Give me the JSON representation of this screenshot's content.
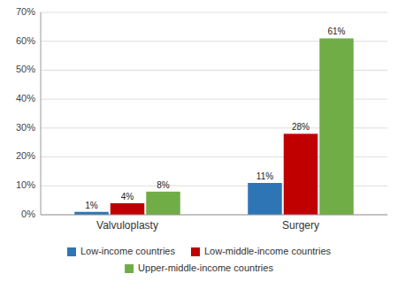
{
  "chart_data": {
    "type": "bar",
    "categories": [
      "Valvuloplasty",
      "Surgery"
    ],
    "series": [
      {
        "name": "Low-income countries",
        "color": "#2E75B6",
        "values": [
          1,
          11
        ],
        "value_labels": [
          "1%",
          "11%"
        ]
      },
      {
        "name": "Low-middle-income countries",
        "color": "#C00000",
        "values": [
          4,
          28
        ],
        "value_labels": [
          "4%",
          "28%"
        ]
      },
      {
        "name": "Upper-middle-income countries",
        "color": "#70AD47",
        "values": [
          8,
          61
        ],
        "value_labels": [
          "8%",
          "61%"
        ]
      }
    ],
    "ylim": [
      0,
      70
    ],
    "yticks": [
      {
        "value": 0,
        "label": "0%"
      },
      {
        "value": 10,
        "label": "10%"
      },
      {
        "value": 20,
        "label": "20%"
      },
      {
        "value": 30,
        "label": "30%"
      },
      {
        "value": 40,
        "label": "40%"
      },
      {
        "value": 50,
        "label": "50%"
      },
      {
        "value": 60,
        "label": "60%"
      },
      {
        "value": 70,
        "label": "70%"
      }
    ],
    "grid": true,
    "data_labels": true,
    "legend": "bottom"
  }
}
